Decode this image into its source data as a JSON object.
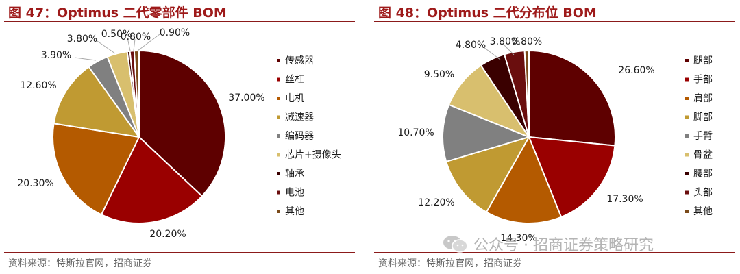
{
  "figures": [
    {
      "title": "图 47：Optimus 二代零部件 BOM",
      "source": "资料来源：特斯拉官网，招商证券"
    },
    {
      "title": "图 48：Optimus 二代分布位 BOM",
      "source": "资料来源：特斯拉官网，招商证券"
    }
  ],
  "watermark": "公众号 · 招商证券策略研究",
  "chart_data": [
    {
      "type": "pie",
      "title": "图 47：Optimus 二代零部件 BOM",
      "legend_position": "right",
      "start_angle_deg": 0,
      "direction": "clockwise",
      "slices": [
        {
          "label": "传感器",
          "value": 37.0,
          "text": "37.00%",
          "color": "#5e0000"
        },
        {
          "label": "丝杠",
          "value": 20.2,
          "text": "20.20%",
          "color": "#9a0000"
        },
        {
          "label": "电机",
          "value": 20.3,
          "text": "20.30%",
          "color": "#b45a00"
        },
        {
          "label": "减速器",
          "value": 12.6,
          "text": "12.60%",
          "color": "#c09a32"
        },
        {
          "label": "编码器",
          "value": 3.9,
          "text": "3.90%",
          "color": "#808080"
        },
        {
          "label": "芯片+摄像头",
          "value": 3.8,
          "text": "3.80%",
          "color": "#d8bf6e"
        },
        {
          "label": "轴承",
          "value": 0.5,
          "text": "0.50%",
          "color": "#3a0000"
        },
        {
          "label": "电池",
          "value": 0.8,
          "text": "0.80%",
          "color": "#6a0e0e"
        },
        {
          "label": "其他",
          "value": 0.9,
          "text": "0.90%",
          "color": "#7a4a1a"
        }
      ]
    },
    {
      "type": "pie",
      "title": "图 48：Optimus 二代分布位 BOM",
      "legend_position": "right",
      "start_angle_deg": 0,
      "direction": "clockwise",
      "slices": [
        {
          "label": "腿部",
          "value": 26.6,
          "text": "26.60%",
          "color": "#5e0000"
        },
        {
          "label": "手部",
          "value": 17.3,
          "text": "17.30%",
          "color": "#9a0000"
        },
        {
          "label": "肩部",
          "value": 14.3,
          "text": "14.30%",
          "color": "#b45a00"
        },
        {
          "label": "脚部",
          "value": 12.2,
          "text": "12.20%",
          "color": "#c09a32"
        },
        {
          "label": "手臂",
          "value": 10.7,
          "text": "10.70%",
          "color": "#808080"
        },
        {
          "label": "骨盆",
          "value": 9.5,
          "text": "9.50%",
          "color": "#d8bf6e"
        },
        {
          "label": "腰部",
          "value": 4.8,
          "text": "4.80%",
          "color": "#3a0000"
        },
        {
          "label": "头部",
          "value": 3.8,
          "text": "3.80%",
          "color": "#6a0e0e"
        },
        {
          "label": "其他",
          "value": 0.8,
          "text": "0.80%",
          "color": "#7a4a1a"
        }
      ]
    }
  ]
}
